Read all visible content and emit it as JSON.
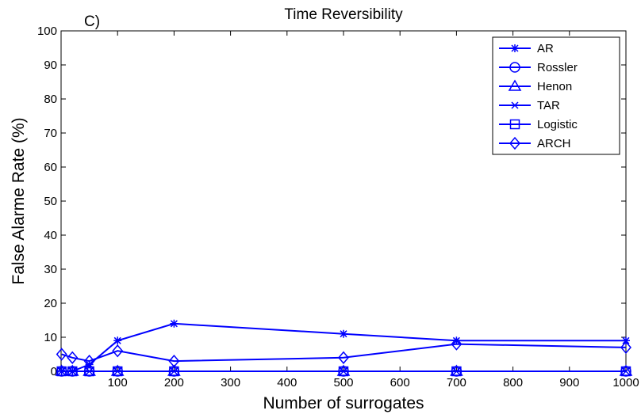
{
  "chart_data": {
    "type": "line",
    "panel_label": "C)",
    "title": "Time Reversibility",
    "xlabel": "Number of surrogates",
    "ylabel": "False Alarme Rate (%)",
    "xlim": [
      0,
      1000
    ],
    "ylim": [
      0,
      100
    ],
    "xticks": [
      100,
      200,
      300,
      400,
      500,
      600,
      700,
      800,
      900,
      1000
    ],
    "yticks": [
      0,
      10,
      20,
      30,
      40,
      50,
      60,
      70,
      80,
      90,
      100
    ],
    "grid": false,
    "legend_position": "top-right",
    "line_color": "#0000ff",
    "x": [
      1,
      20,
      50,
      100,
      200,
      500,
      700,
      1000
    ],
    "series": [
      {
        "name": "AR",
        "marker": "star",
        "values": [
          0,
          0,
          2,
          9,
          14,
          11,
          9,
          9
        ]
      },
      {
        "name": "Rossler",
        "marker": "circle",
        "values": [
          0,
          0,
          0,
          0,
          0,
          0,
          0,
          0
        ]
      },
      {
        "name": "Henon",
        "marker": "triangle",
        "values": [
          0,
          0,
          0,
          0,
          0,
          0,
          0,
          0
        ]
      },
      {
        "name": "TAR",
        "marker": "x",
        "values": [
          0,
          0,
          0,
          0,
          0,
          0,
          0,
          0
        ]
      },
      {
        "name": "Logistic",
        "marker": "square",
        "values": [
          0,
          0,
          0,
          0,
          0,
          0,
          0,
          0
        ]
      },
      {
        "name": "ARCH",
        "marker": "diamond",
        "values": [
          5,
          4,
          3,
          6,
          3,
          4,
          8,
          7
        ]
      }
    ]
  }
}
